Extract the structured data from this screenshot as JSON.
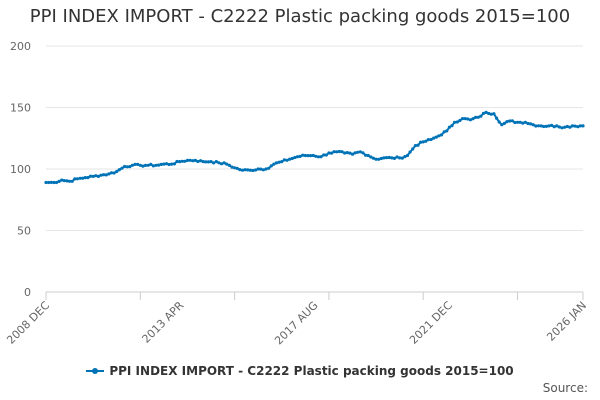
{
  "title": "PPI INDEX IMPORT - C2222 Plastic packing goods 2015=100",
  "source_label": "Source:",
  "colors": {
    "series": "#0073b7",
    "grid": "#e6e6e6",
    "axis": "#cccccc",
    "text": "#666666"
  },
  "chart_data": {
    "type": "line",
    "title": "PPI INDEX IMPORT - C2222 Plastic packing goods 2015=100",
    "xlabel": "",
    "ylabel": "",
    "ylim": [
      0,
      200
    ],
    "y_ticks": [
      0,
      50,
      100,
      150,
      200
    ],
    "x_tick_labels": [
      "2008 DEC",
      "2013 APR",
      "2017 AUG",
      "2021 DEC",
      "2026 JAN"
    ],
    "grid": true,
    "legend_position": "bottom",
    "series": [
      {
        "name": "PPI INDEX IMPORT - C2222 Plastic packing goods 2015=100",
        "x": [
          "2008-12",
          "2009-03",
          "2009-06",
          "2009-09",
          "2009-12",
          "2010-03",
          "2010-06",
          "2010-09",
          "2010-12",
          "2011-03",
          "2011-06",
          "2011-09",
          "2011-12",
          "2012-03",
          "2012-06",
          "2012-09",
          "2012-12",
          "2013-03",
          "2013-06",
          "2013-09",
          "2013-12",
          "2014-03",
          "2014-06",
          "2014-09",
          "2014-12",
          "2015-03",
          "2015-06",
          "2015-09",
          "2015-12",
          "2016-03",
          "2016-06",
          "2016-09",
          "2016-12",
          "2017-03",
          "2017-06",
          "2017-09",
          "2017-12",
          "2018-03",
          "2018-06",
          "2018-09",
          "2018-12",
          "2019-03",
          "2019-06",
          "2019-09",
          "2019-12",
          "2020-03",
          "2020-06",
          "2020-09",
          "2020-12",
          "2021-03",
          "2021-06",
          "2021-09",
          "2021-12",
          "2022-03",
          "2022-06",
          "2022-09",
          "2022-12",
          "2023-03",
          "2023-06",
          "2023-09",
          "2023-12",
          "2024-03",
          "2024-06",
          "2024-09",
          "2024-12",
          "2025-03",
          "2025-06",
          "2025-09",
          "2025-12",
          "2026-01"
        ],
        "values": [
          89,
          89,
          91,
          90,
          92,
          93,
          94,
          95,
          96,
          98,
          102,
          103,
          103,
          103,
          103,
          104,
          104,
          106,
          107,
          107,
          106,
          106,
          105,
          104,
          101,
          99,
          99,
          100,
          100,
          104,
          106,
          108,
          110,
          111,
          111,
          110,
          113,
          114,
          113,
          112,
          114,
          111,
          108,
          109,
          109,
          109,
          111,
          119,
          122,
          124,
          127,
          131,
          138,
          141,
          140,
          142,
          146,
          145,
          136,
          139,
          138,
          138,
          136,
          135,
          135,
          135,
          134,
          135,
          135,
          135
        ]
      }
    ]
  }
}
